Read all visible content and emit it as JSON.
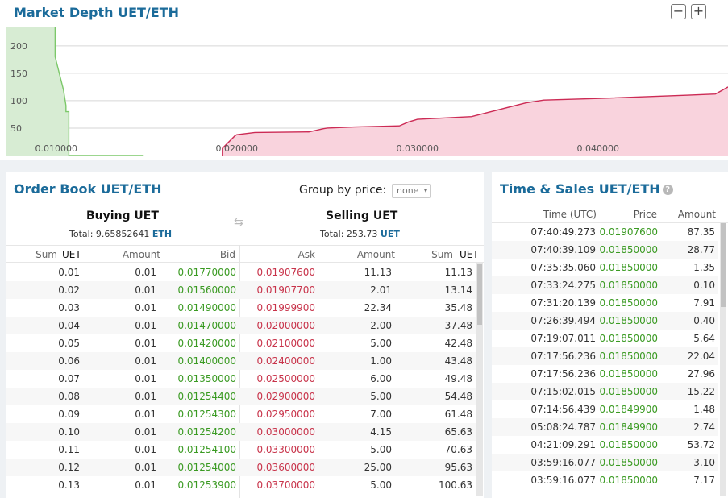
{
  "depth": {
    "title": "Market Depth UET/ETH",
    "zoom_out": "−",
    "zoom_in": "+",
    "chart_data": {
      "type": "area",
      "xlim": [
        0.0072,
        0.0472
      ],
      "ylim": [
        0,
        235
      ],
      "x_ticks": [
        0.01,
        0.02,
        0.03,
        0.04
      ],
      "x_tick_labels": [
        "0.010000",
        "0.020000",
        "0.030000",
        "0.040000"
      ],
      "y_ticks": [
        50,
        100,
        150,
        200
      ],
      "y_tick_labels": [
        "50",
        "100",
        "150",
        "200"
      ],
      "grid": true,
      "series": [
        {
          "side": "bids",
          "color": "#7cc86a",
          "fill": "#d7ecd3",
          "x": [
            0.0072,
            0.00994,
            0.00994,
            0.0104,
            0.01054,
            0.01054,
            0.0107,
            0.0107,
            0.0107,
            0.0126,
            0.0136,
            0.0148
          ],
          "y": [
            235,
            235,
            180,
            120,
            91,
            80,
            80,
            0,
            0,
            0,
            0,
            0
          ]
        },
        {
          "side": "asks",
          "color": "#cc2b55",
          "fill": "#f9d3dd",
          "x": [
            0.0192,
            0.0192,
            0.0199,
            0.02,
            0.021,
            0.024,
            0.0248,
            0.025,
            0.0265,
            0.029,
            0.0295,
            0.0298,
            0.03,
            0.033,
            0.036,
            0.037,
            0.04,
            0.045,
            0.0465,
            0.0472
          ],
          "y": [
            0,
            13,
            36,
            38,
            42,
            43,
            49,
            50,
            52,
            54,
            61,
            64,
            66,
            71,
            96,
            101,
            104,
            110,
            112,
            125
          ]
        }
      ]
    }
  },
  "orderbook": {
    "title": "Order Book UET/ETH",
    "group_label": "Group by price:",
    "group_value": "none",
    "buy_title": "Buying UET",
    "buy_total_label": "Total: 9.65852641",
    "buy_total_unit": "ETH",
    "sell_title": "Selling UET",
    "sell_total_label": "Total: 253.73",
    "sell_total_unit": "UET",
    "headers": {
      "sum": "Sum",
      "unit": "UET",
      "amount": "Amount",
      "bid": "Bid",
      "ask": "Ask",
      "amount2": "Amount",
      "sum2": "Sum",
      "unit2": "UET"
    },
    "rows": [
      {
        "bsum": "0.01",
        "bamt": "0.01",
        "bid": "0.01770000",
        "ask": "0.01907600",
        "aamt": "11.13",
        "asum": "11.13"
      },
      {
        "bsum": "0.02",
        "bamt": "0.01",
        "bid": "0.01560000",
        "ask": "0.01907700",
        "aamt": "2.01",
        "asum": "13.14"
      },
      {
        "bsum": "0.03",
        "bamt": "0.01",
        "bid": "0.01490000",
        "ask": "0.01999900",
        "aamt": "22.34",
        "asum": "35.48"
      },
      {
        "bsum": "0.04",
        "bamt": "0.01",
        "bid": "0.01470000",
        "ask": "0.02000000",
        "aamt": "2.00",
        "asum": "37.48"
      },
      {
        "bsum": "0.05",
        "bamt": "0.01",
        "bid": "0.01420000",
        "ask": "0.02100000",
        "aamt": "5.00",
        "asum": "42.48"
      },
      {
        "bsum": "0.06",
        "bamt": "0.01",
        "bid": "0.01400000",
        "ask": "0.02400000",
        "aamt": "1.00",
        "asum": "43.48"
      },
      {
        "bsum": "0.07",
        "bamt": "0.01",
        "bid": "0.01350000",
        "ask": "0.02500000",
        "aamt": "6.00",
        "asum": "49.48"
      },
      {
        "bsum": "0.08",
        "bamt": "0.01",
        "bid": "0.01254400",
        "ask": "0.02900000",
        "aamt": "5.00",
        "asum": "54.48"
      },
      {
        "bsum": "0.09",
        "bamt": "0.01",
        "bid": "0.01254300",
        "ask": "0.02950000",
        "aamt": "7.00",
        "asum": "61.48"
      },
      {
        "bsum": "0.10",
        "bamt": "0.01",
        "bid": "0.01254200",
        "ask": "0.03000000",
        "aamt": "4.15",
        "asum": "65.63"
      },
      {
        "bsum": "0.11",
        "bamt": "0.01",
        "bid": "0.01254100",
        "ask": "0.03300000",
        "aamt": "5.00",
        "asum": "70.63"
      },
      {
        "bsum": "0.12",
        "bamt": "0.01",
        "bid": "0.01254000",
        "ask": "0.03600000",
        "aamt": "25.00",
        "asum": "95.63"
      },
      {
        "bsum": "0.13",
        "bamt": "0.01",
        "bid": "0.01253900",
        "ask": "0.03700000",
        "aamt": "5.00",
        "asum": "100.63"
      }
    ]
  },
  "sales": {
    "title": "Time & Sales UET/ETH",
    "help": "?",
    "headers": {
      "time": "Time (UTC)",
      "price": "Price",
      "amount": "Amount"
    },
    "rows": [
      {
        "time": "07:40:49.273",
        "price": "0.01907600",
        "amount": "87.35"
      },
      {
        "time": "07:40:39.109",
        "price": "0.01850000",
        "amount": "28.77"
      },
      {
        "time": "07:35:35.060",
        "price": "0.01850000",
        "amount": "1.35"
      },
      {
        "time": "07:33:24.275",
        "price": "0.01850000",
        "amount": "0.10"
      },
      {
        "time": "07:31:20.139",
        "price": "0.01850000",
        "amount": "7.91"
      },
      {
        "time": "07:26:39.494",
        "price": "0.01850000",
        "amount": "0.40"
      },
      {
        "time": "07:19:07.011",
        "price": "0.01850000",
        "amount": "5.64"
      },
      {
        "time": "07:17:56.236",
        "price": "0.01850000",
        "amount": "22.04"
      },
      {
        "time": "07:17:56.236",
        "price": "0.01850000",
        "amount": "27.96"
      },
      {
        "time": "07:15:02.015",
        "price": "0.01850000",
        "amount": "15.22"
      },
      {
        "time": "07:14:56.439",
        "price": "0.01849900",
        "amount": "1.48"
      },
      {
        "time": "05:08:24.787",
        "price": "0.01849900",
        "amount": "2.74"
      },
      {
        "time": "04:21:09.291",
        "price": "0.01850000",
        "amount": "53.72"
      },
      {
        "time": "03:59:16.077",
        "price": "0.01850000",
        "amount": "3.10"
      },
      {
        "time": "03:59:16.077",
        "price": "0.01850000",
        "amount": "7.17"
      }
    ]
  }
}
